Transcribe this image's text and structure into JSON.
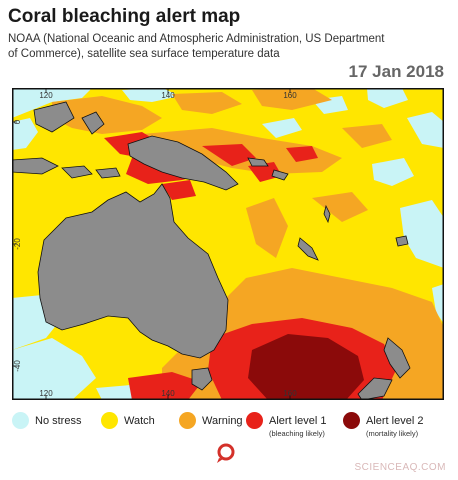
{
  "header": {
    "title": "Coral bleaching alert map",
    "subtitle": "NOAA (National Oceanic and Atmospheric Administration, US Department of Commerce), satellite sea surface temperature data",
    "date": "17 Jan 2018"
  },
  "map": {
    "longitude_ticks": [
      "120",
      "140",
      "160"
    ],
    "latitude_ticks": [
      "0",
      "-20",
      "-40"
    ],
    "colors": {
      "no_stress": "#c9f4f6",
      "watch": "#ffe600",
      "warning": "#f5a623",
      "alert_level_1": "#e8221a",
      "alert_level_2": "#8b0a0a",
      "land": "#8c8c8c"
    }
  },
  "legend": {
    "items": [
      {
        "label": "No stress",
        "note": "",
        "color": "#c9f4f6"
      },
      {
        "label": "Watch",
        "note": "",
        "color": "#ffe600"
      },
      {
        "label": "Warning",
        "note": "",
        "color": "#f5a623"
      },
      {
        "label": "Alert level 1",
        "note": "(bleaching likely)",
        "color": "#e8221a"
      },
      {
        "label": "Alert level 2",
        "note": "(mortality likely)",
        "color": "#8b0a0a"
      }
    ]
  },
  "footer": {
    "credit": "SCIENCEAQ.COM"
  }
}
